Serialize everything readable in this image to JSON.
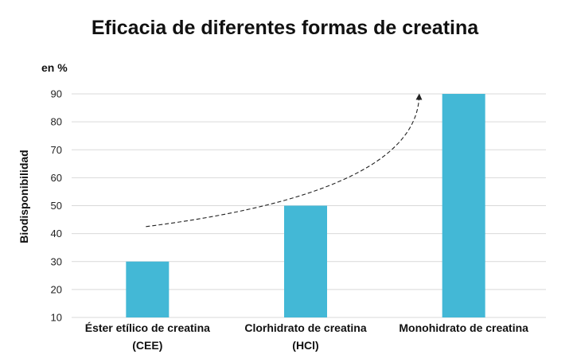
{
  "chart_data": {
    "type": "bar",
    "title": "Eficacia de diferentes formas de creatina",
    "unit_label": "en %",
    "ylabel": "Biodisponibilidad",
    "xlabel": "",
    "categories": [
      [
        "Éster etílico de creatina",
        "(CEE)"
      ],
      [
        "Clorhidrato de creatina",
        "(HCl)"
      ],
      [
        "Monohidrato de creatina"
      ]
    ],
    "values": [
      30,
      50,
      90
    ],
    "ylim": [
      10,
      90
    ],
    "yticks": [
      10,
      20,
      30,
      40,
      50,
      60,
      70,
      80,
      90
    ],
    "grid": true,
    "legend": "none",
    "annotation": "dashed curved arrow rising from the first bar toward the top of the third bar"
  },
  "colors": {
    "bar": "#43b8d6",
    "grid": "#d9d9d9",
    "arrow": "#222222",
    "text": "#111111"
  }
}
